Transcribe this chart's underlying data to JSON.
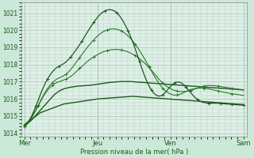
{
  "xlabel": "Pression niveau de la mer( hPa )",
  "bg_color": "#cce8d8",
  "plot_area_bg": "#dff0e8",
  "grid_color": "#b0ccbc",
  "yticks": [
    1014,
    1015,
    1016,
    1017,
    1018,
    1019,
    1020,
    1021
  ],
  "ylim": [
    1013.8,
    1021.6
  ],
  "xtick_labels": [
    "Mer",
    "Jeu",
    "Ven",
    "Sam"
  ],
  "xtick_positions": [
    0,
    96,
    192,
    288
  ],
  "xlim": [
    -4,
    292
  ],
  "series": [
    {
      "y": [
        1014.5,
        1014.6,
        1014.7,
        1014.8,
        1014.9,
        1015.0,
        1015.1,
        1015.2,
        1015.25,
        1015.3,
        1015.35,
        1015.4,
        1015.45,
        1015.5,
        1015.55,
        1015.6,
        1015.65,
        1015.7,
        1015.72,
        1015.74,
        1015.76,
        1015.78,
        1015.8,
        1015.82,
        1015.84,
        1015.86,
        1015.88,
        1015.9,
        1015.92,
        1015.94,
        1015.96,
        1015.98,
        1016.0,
        1016.01,
        1016.02,
        1016.03,
        1016.04,
        1016.05,
        1016.06,
        1016.07,
        1016.08,
        1016.09,
        1016.1,
        1016.11,
        1016.12,
        1016.13,
        1016.14,
        1016.15,
        1016.14,
        1016.13,
        1016.12,
        1016.11,
        1016.1,
        1016.09,
        1016.08,
        1016.07,
        1016.06,
        1016.05,
        1016.04,
        1016.03,
        1016.02,
        1016.01,
        1016.0,
        1015.99,
        1015.98,
        1015.97,
        1015.96,
        1015.95,
        1015.94,
        1015.93,
        1015.92,
        1015.91,
        1015.9,
        1015.89,
        1015.88,
        1015.87,
        1015.86,
        1015.85,
        1015.84,
        1015.83,
        1015.82,
        1015.81,
        1015.8,
        1015.79,
        1015.78,
        1015.77,
        1015.76,
        1015.75,
        1015.74,
        1015.73,
        1015.72,
        1015.71,
        1015.7,
        1015.69,
        1015.68,
        1015.67
      ],
      "color": "#1a5c1a",
      "lw": 1.0,
      "marker": null,
      "ms": 0,
      "markevery": 1
    },
    {
      "y": [
        1014.5,
        1014.55,
        1014.65,
        1014.75,
        1014.9,
        1015.05,
        1015.2,
        1015.35,
        1015.5,
        1015.65,
        1015.8,
        1015.95,
        1016.1,
        1016.25,
        1016.35,
        1016.45,
        1016.52,
        1016.58,
        1016.62,
        1016.65,
        1016.68,
        1016.7,
        1016.72,
        1016.74,
        1016.75,
        1016.76,
        1016.77,
        1016.78,
        1016.79,
        1016.8,
        1016.82,
        1016.84,
        1016.86,
        1016.88,
        1016.9,
        1016.92,
        1016.94,
        1016.96,
        1016.97,
        1016.98,
        1016.99,
        1017.0,
        1017.01,
        1017.01,
        1017.01,
        1017.01,
        1017.01,
        1017.0,
        1016.99,
        1016.98,
        1016.97,
        1016.96,
        1016.95,
        1016.94,
        1016.93,
        1016.92,
        1016.91,
        1016.9,
        1016.89,
        1016.88,
        1016.87,
        1016.86,
        1016.85,
        1016.84,
        1016.83,
        1016.82,
        1016.81,
        1016.8,
        1016.79,
        1016.78,
        1016.77,
        1016.76,
        1016.75,
        1016.74,
        1016.73,
        1016.72,
        1016.71,
        1016.7,
        1016.69,
        1016.68,
        1016.67,
        1016.66,
        1016.65,
        1016.64,
        1016.63,
        1016.62,
        1016.61,
        1016.6,
        1016.59,
        1016.58,
        1016.57,
        1016.56,
        1016.55,
        1016.54,
        1016.53,
        1016.52
      ],
      "color": "#1a5c1a",
      "lw": 1.0,
      "marker": null,
      "ms": 0,
      "markevery": 1
    },
    {
      "y": [
        1014.5,
        1014.6,
        1014.75,
        1014.95,
        1015.15,
        1015.35,
        1015.6,
        1015.85,
        1016.1,
        1016.3,
        1016.5,
        1016.65,
        1016.78,
        1016.88,
        1016.95,
        1017.0,
        1017.05,
        1017.1,
        1017.15,
        1017.22,
        1017.3,
        1017.4,
        1017.52,
        1017.65,
        1017.78,
        1017.9,
        1018.02,
        1018.14,
        1018.25,
        1018.35,
        1018.44,
        1018.52,
        1018.6,
        1018.67,
        1018.73,
        1018.78,
        1018.82,
        1018.85,
        1018.87,
        1018.88,
        1018.88,
        1018.87,
        1018.85,
        1018.82,
        1018.78,
        1018.73,
        1018.67,
        1018.6,
        1018.52,
        1018.43,
        1018.33,
        1018.22,
        1018.1,
        1017.97,
        1017.83,
        1017.68,
        1017.52,
        1017.36,
        1017.2,
        1017.05,
        1016.92,
        1016.8,
        1016.7,
        1016.62,
        1016.55,
        1016.5,
        1016.46,
        1016.44,
        1016.43,
        1016.43,
        1016.44,
        1016.46,
        1016.49,
        1016.53,
        1016.58,
        1016.63,
        1016.68,
        1016.72,
        1016.75,
        1016.77,
        1016.78,
        1016.78,
        1016.77,
        1016.76,
        1016.74,
        1016.72,
        1016.7,
        1016.68,
        1016.66,
        1016.64,
        1016.62,
        1016.6,
        1016.58,
        1016.56,
        1016.54,
        1016.52
      ],
      "color": "#2a7a2a",
      "lw": 0.8,
      "marker": "+",
      "ms": 2.5,
      "markevery": 6
    },
    {
      "y": [
        1014.4,
        1014.5,
        1014.65,
        1014.85,
        1015.1,
        1015.35,
        1015.62,
        1015.9,
        1016.15,
        1016.38,
        1016.6,
        1016.78,
        1016.92,
        1017.05,
        1017.15,
        1017.22,
        1017.28,
        1017.35,
        1017.43,
        1017.55,
        1017.7,
        1017.87,
        1018.05,
        1018.23,
        1018.42,
        1018.6,
        1018.78,
        1018.95,
        1019.12,
        1019.28,
        1019.43,
        1019.57,
        1019.7,
        1019.81,
        1019.9,
        1019.97,
        1020.02,
        1020.06,
        1020.08,
        1020.08,
        1020.06,
        1020.02,
        1019.96,
        1019.88,
        1019.78,
        1019.66,
        1019.52,
        1019.36,
        1019.18,
        1019.0,
        1018.8,
        1018.58,
        1018.35,
        1018.12,
        1017.88,
        1017.64,
        1017.4,
        1017.18,
        1016.97,
        1016.78,
        1016.62,
        1016.48,
        1016.38,
        1016.3,
        1016.25,
        1016.22,
        1016.22,
        1016.25,
        1016.3,
        1016.36,
        1016.42,
        1016.48,
        1016.53,
        1016.57,
        1016.6,
        1016.62,
        1016.63,
        1016.63,
        1016.62,
        1016.6,
        1016.58,
        1016.55,
        1016.52,
        1016.49,
        1016.46,
        1016.43,
        1016.4,
        1016.37,
        1016.35,
        1016.32,
        1016.3,
        1016.28,
        1016.26,
        1016.24,
        1016.22,
        1016.2
      ],
      "color": "#2a7a2a",
      "lw": 0.8,
      "marker": "+",
      "ms": 2.5,
      "markevery": 6
    },
    {
      "y": [
        1014.4,
        1014.52,
        1014.7,
        1014.95,
        1015.25,
        1015.58,
        1015.92,
        1016.28,
        1016.6,
        1016.9,
        1017.15,
        1017.37,
        1017.55,
        1017.7,
        1017.82,
        1017.9,
        1017.97,
        1018.05,
        1018.15,
        1018.28,
        1018.43,
        1018.6,
        1018.78,
        1018.97,
        1019.17,
        1019.38,
        1019.6,
        1019.82,
        1020.04,
        1020.25,
        1020.45,
        1020.63,
        1020.8,
        1020.95,
        1021.05,
        1021.13,
        1021.18,
        1021.2,
        1021.18,
        1021.12,
        1021.02,
        1020.88,
        1020.7,
        1020.48,
        1020.23,
        1019.95,
        1019.64,
        1019.3,
        1018.93,
        1018.55,
        1018.15,
        1017.75,
        1017.38,
        1017.05,
        1016.76,
        1016.53,
        1016.35,
        1016.23,
        1016.17,
        1016.17,
        1016.24,
        1016.36,
        1016.52,
        1016.68,
        1016.82,
        1016.92,
        1016.98,
        1016.98,
        1016.93,
        1016.83,
        1016.7,
        1016.54,
        1016.38,
        1016.22,
        1016.08,
        1015.97,
        1015.88,
        1015.82,
        1015.78,
        1015.76,
        1015.75,
        1015.75,
        1015.75,
        1015.75,
        1015.74,
        1015.73,
        1015.72,
        1015.71,
        1015.7,
        1015.69,
        1015.68,
        1015.67,
        1015.66,
        1015.65,
        1015.64,
        1015.63
      ],
      "color": "#1a5c1a",
      "lw": 0.9,
      "marker": "+",
      "ms": 2.5,
      "markevery": 5
    }
  ]
}
